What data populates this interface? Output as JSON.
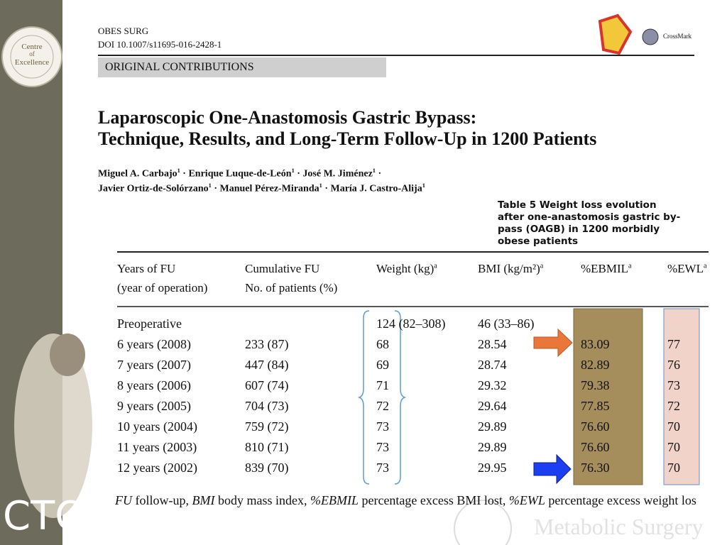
{
  "badge": {
    "lines": [
      "Centre",
      "of",
      "Excellence"
    ]
  },
  "header": {
    "journal": "OBES SURG",
    "doi": "DOI 10.1007/s11695-016-2428-1",
    "crossmark": "CrossMark",
    "section": "ORIGINAL CONTRIBUTIONS"
  },
  "title": [
    "Laparoscopic One-Anastomosis Gastric Bypass:",
    "Technique, Results, and Long-Term Follow-Up in 1200 Patients"
  ],
  "separator": "·",
  "authors": [
    [
      {
        "name": "Miguel A. Carbajo",
        "aff": "1"
      },
      {
        "name": "Enrique Luque-de-León",
        "aff": "1"
      },
      {
        "name": "José M. Jiménez",
        "aff": "1"
      }
    ],
    [
      {
        "name": "Javier Ortiz-de-Solórzano",
        "aff": "1"
      },
      {
        "name": "Manuel Pérez-Miranda",
        "aff": "1"
      },
      {
        "name": "María J. Castro-Alija",
        "aff": "1"
      }
    ]
  ],
  "table": {
    "label": "Table 5",
    "caption": [
      "Weight loss evolution",
      "after one-anastomosis gastric by-",
      "pass (OAGB) in 1200 morbidly",
      "obese patients"
    ],
    "headers": [
      {
        "lines": [
          "Years of FU",
          "(year of operation)"
        ]
      },
      {
        "lines": [
          "Cumulative FU",
          "No. of patients (%)"
        ]
      },
      {
        "text": "Weight (kg)",
        "sup": "a"
      },
      {
        "text": "BMI (kg/m²)",
        "sup": "a"
      },
      {
        "text": "%EBMIL",
        "sup": "a"
      },
      {
        "text": "%EWL",
        "sup": "a"
      }
    ],
    "rows": [
      [
        "Preoperative",
        null,
        "124 (82–308)",
        "46 (33–86)",
        null,
        null
      ],
      [
        "6 years (2008)",
        "233 (87)",
        "68",
        "28.54",
        "83.09",
        "77"
      ],
      [
        "7 years (2007)",
        "447 (84)",
        "69",
        "28.74",
        "82.89",
        "76"
      ],
      [
        "8 years (2006)",
        "607 (74)",
        "71",
        "29.32",
        "79.38",
        "73"
      ],
      [
        "9 years (2005)",
        "704 (73)",
        "72",
        "29.64",
        "77.85",
        "72"
      ],
      [
        "10 years (2004)",
        "759 (72)",
        "73",
        "29.89",
        "76.60",
        "70"
      ],
      [
        "11 years (2003)",
        "810 (71)",
        "73",
        "29.89",
        "76.60",
        "70"
      ],
      [
        "12 years (2002)",
        "839 (70)",
        "73",
        "29.95",
        "76.30",
        "70"
      ]
    ],
    "footnote": [
      "FU",
      " follow-up, ",
      "BMI",
      " body mass index, ",
      "%EBMIL",
      " percentage excess BMI lost, ",
      "%EWL",
      " percentage excess weight los"
    ]
  },
  "logo": "CTO",
  "watermark": "Metabolic Surgery"
}
